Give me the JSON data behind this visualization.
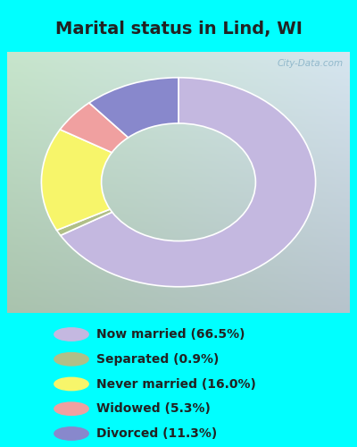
{
  "title": "Marital status in Lind, WI",
  "slices": [
    {
      "label": "Now married (66.5%)",
      "value": 66.5,
      "color": "#c4b8e0"
    },
    {
      "label": "Separated (0.9%)",
      "value": 0.9,
      "color": "#b0bf88"
    },
    {
      "label": "Never married (16.0%)",
      "value": 16.0,
      "color": "#f7f56a"
    },
    {
      "label": "Widowed (5.3%)",
      "value": 5.3,
      "color": "#f0a0a0"
    },
    {
      "label": "Divorced (11.3%)",
      "value": 11.3,
      "color": "#8888cc"
    }
  ],
  "bg_cyan": "#00ffff",
  "bg_chart_gradient": [
    "#c8e8d0",
    "#d8edd8",
    "#e8f4e8",
    "#f0f8f0",
    "#e8f2f8",
    "#ddeef8"
  ],
  "title_color": "#222222",
  "title_fontsize": 14,
  "legend_fontsize": 10,
  "watermark": "City-Data.com",
  "watermark_color": "#8ab4c8",
  "start_angle": 90,
  "donut_outer_r": 1.28,
  "donut_inner_r": 0.72,
  "chart_bg_left": "#b8dcc0",
  "chart_bg_right": "#d8e8f0"
}
